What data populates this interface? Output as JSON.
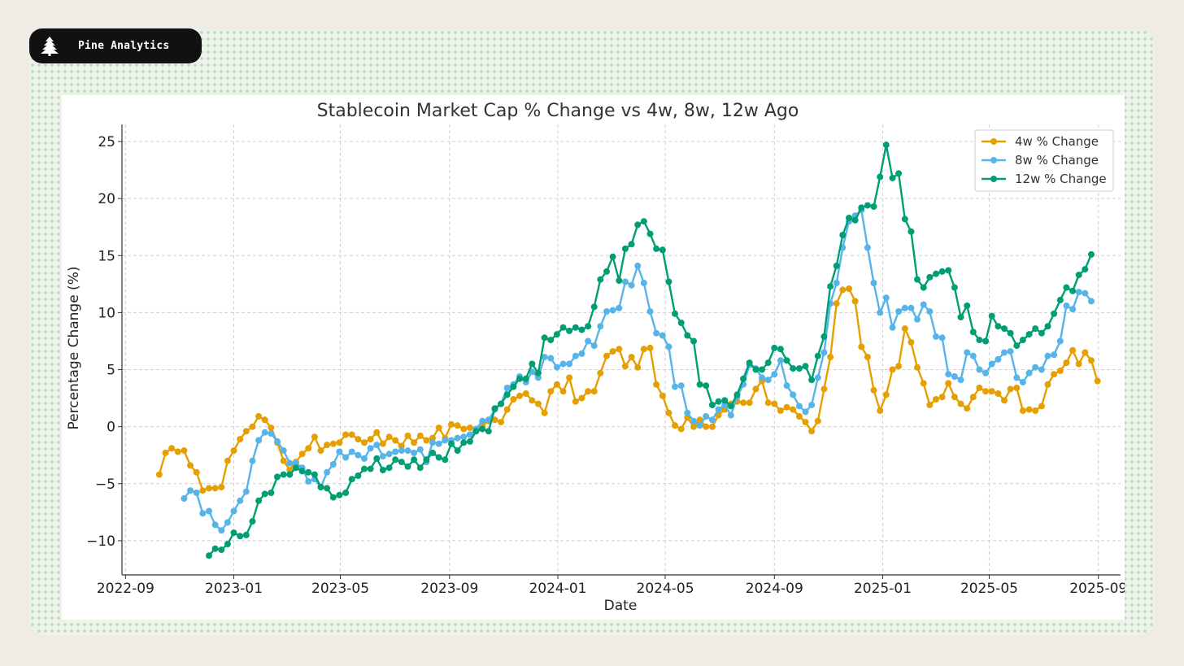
{
  "brand": {
    "name": "Pine Analytics",
    "icon": "pine-tree-icon"
  },
  "chart_data": {
    "type": "line",
    "title": "Stablecoin Market Cap % Change vs 4w, 8w, 12w Ago",
    "xlabel": "Date",
    "ylabel": "Percentage Change (%)",
    "ylim": [
      -13,
      26.5
    ],
    "xlim": [
      "2022-08-28",
      "2025-09-26"
    ],
    "x_ticks": [
      {
        "date": "2022-09-01",
        "label": "2022-09"
      },
      {
        "date": "2023-01-01",
        "label": "2023-01"
      },
      {
        "date": "2023-05-01",
        "label": "2023-05"
      },
      {
        "date": "2023-09-01",
        "label": "2023-09"
      },
      {
        "date": "2024-01-01",
        "label": "2024-01"
      },
      {
        "date": "2024-05-01",
        "label": "2024-05"
      },
      {
        "date": "2024-09-01",
        "label": "2024-09"
      },
      {
        "date": "2025-01-01",
        "label": "2025-01"
      },
      {
        "date": "2025-05-01",
        "label": "2025-05"
      },
      {
        "date": "2025-09-01",
        "label": "2025-09"
      }
    ],
    "y_ticks": [
      -10,
      -5,
      0,
      5,
      10,
      15,
      20,
      25
    ],
    "y_tick_labels": [
      "−10",
      "−5",
      "0",
      "5",
      "10",
      "15",
      "20",
      "25"
    ],
    "grid": true,
    "legend_position": "top-right",
    "series": [
      {
        "name": "4w % Change",
        "color": "#e69f00",
        "start_date": "2022-10-09",
        "interval_days": 7,
        "values": [
          -4.2,
          -2.3,
          -1.9,
          -2.2,
          -2.1,
          -3.4,
          -4.0,
          -5.6,
          -5.4,
          -5.4,
          -5.3,
          -3.0,
          -2.1,
          -1.1,
          -0.4,
          0.0,
          0.9,
          0.6,
          -0.1,
          -1.4,
          -3.0,
          -3.8,
          -3.1,
          -2.4,
          -1.9,
          -0.9,
          -2.1,
          -1.6,
          -1.5,
          -1.4,
          -0.7,
          -0.7,
          -1.1,
          -1.4,
          -1.1,
          -0.5,
          -1.5,
          -0.9,
          -1.2,
          -1.7,
          -0.8,
          -1.4,
          -0.8,
          -1.2,
          -1.0,
          -0.1,
          -1.0,
          0.2,
          0.1,
          -0.2,
          -0.1,
          -0.2,
          0.1,
          0.5,
          0.6,
          0.4,
          1.5,
          2.4,
          2.7,
          2.9,
          2.3,
          2.0,
          1.2,
          3.1,
          3.7,
          3.1,
          4.3,
          2.2,
          2.5,
          3.1,
          3.1,
          4.7,
          6.2,
          6.6,
          6.8,
          5.3,
          6.1,
          5.2,
          6.8,
          6.9,
          3.7,
          2.7,
          1.2,
          0.1,
          -0.2,
          0.8,
          0.0,
          0.6,
          0.0,
          0.0,
          1.0,
          1.5,
          2.0,
          2.2,
          2.1,
          2.1,
          3.3,
          4.0,
          2.1,
          2.0,
          1.4,
          1.7,
          1.5,
          0.9,
          0.4,
          -0.4,
          0.5,
          3.3,
          6.1,
          10.8,
          12.0,
          12.1,
          11.0,
          7.0,
          6.1,
          3.2,
          1.4,
          2.8,
          5.0,
          5.3,
          8.6,
          7.4,
          5.2,
          3.8,
          1.9,
          2.4,
          2.6,
          3.8,
          2.6,
          2.0,
          1.6,
          2.6,
          3.4,
          3.1,
          3.1,
          2.9,
          2.3,
          3.3,
          3.4,
          1.4,
          1.5,
          1.4,
          1.8,
          3.7,
          4.6,
          4.9,
          5.6,
          6.7,
          5.5,
          6.5,
          5.8,
          4.0
        ]
      },
      {
        "name": "8w % Change",
        "color": "#56b4e9",
        "start_date": "2022-11-06",
        "interval_days": 7,
        "values": [
          -6.3,
          -5.6,
          -5.8,
          -7.6,
          -7.4,
          -8.6,
          -9.1,
          -8.4,
          -7.4,
          -6.5,
          -5.7,
          -3.0,
          -1.2,
          -0.5,
          -0.6,
          -1.3,
          -2.1,
          -3.2,
          -3.2,
          -3.6,
          -4.8,
          -4.6,
          -5.3,
          -4.0,
          -3.3,
          -2.2,
          -2.7,
          -2.2,
          -2.5,
          -2.8,
          -1.9,
          -1.6,
          -2.6,
          -2.4,
          -2.2,
          -2.1,
          -2.1,
          -2.3,
          -2.0,
          -3.1,
          -1.4,
          -1.5,
          -1.2,
          -1.2,
          -1.0,
          -0.9,
          -0.7,
          -0.2,
          0.5,
          0.6,
          1.5,
          2.0,
          3.4,
          3.7,
          4.4,
          3.9,
          4.8,
          4.3,
          6.1,
          6.0,
          5.2,
          5.5,
          5.5,
          6.2,
          6.4,
          7.5,
          7.1,
          8.8,
          10.1,
          10.2,
          10.4,
          12.7,
          12.4,
          14.1,
          12.6,
          10.1,
          8.2,
          8.0,
          7.0,
          3.5,
          3.6,
          1.2,
          0.5,
          0.1,
          0.9,
          0.6,
          1.5,
          1.9,
          1.0,
          2.6,
          3.7,
          5.4,
          5.1,
          4.3,
          4.1,
          4.6,
          5.8,
          3.6,
          2.8,
          1.8,
          1.3,
          1.9,
          4.3,
          6.5,
          10.8,
          12.6,
          15.7,
          18.0,
          18.5,
          19.0,
          15.7,
          12.6,
          10.0,
          11.3,
          8.7,
          10.1,
          10.4,
          10.4,
          9.4,
          10.7,
          10.1,
          7.9,
          7.8,
          4.6,
          4.4,
          4.1,
          6.5,
          6.2,
          5.0,
          4.7,
          5.5,
          5.9,
          6.5,
          6.6,
          4.3,
          3.9,
          4.7,
          5.2,
          5.0,
          6.2,
          6.3,
          7.5,
          10.6,
          10.3,
          11.8,
          11.7,
          11.0
        ]
      },
      {
        "name": "12w % Change",
        "color": "#009e73",
        "start_date": "2022-12-04",
        "interval_days": 7,
        "values": [
          -11.3,
          -10.7,
          -10.8,
          -10.3,
          -9.3,
          -9.6,
          -9.5,
          -8.3,
          -6.5,
          -5.9,
          -5.8,
          -4.4,
          -4.2,
          -4.2,
          -3.6,
          -3.9,
          -4.0,
          -4.2,
          -5.3,
          -5.4,
          -6.2,
          -6.0,
          -5.8,
          -4.6,
          -4.3,
          -3.7,
          -3.7,
          -2.8,
          -3.8,
          -3.6,
          -2.9,
          -3.1,
          -3.5,
          -2.9,
          -3.6,
          -2.9,
          -2.3,
          -2.7,
          -2.9,
          -1.5,
          -2.1,
          -1.4,
          -1.3,
          -0.4,
          -0.2,
          -0.4,
          1.6,
          2.0,
          2.8,
          3.5,
          4.2,
          4.2,
          5.5,
          4.7,
          7.8,
          7.6,
          8.1,
          8.7,
          8.4,
          8.7,
          8.5,
          8.8,
          10.5,
          12.9,
          13.6,
          14.9,
          12.8,
          15.6,
          16.0,
          17.7,
          18.0,
          16.9,
          15.6,
          15.5,
          12.7,
          9.9,
          9.1,
          8.0,
          7.5,
          3.7,
          3.6,
          1.9,
          2.2,
          2.3,
          1.8,
          2.8,
          4.2,
          5.6,
          5.0,
          5.0,
          5.6,
          6.9,
          6.8,
          5.8,
          5.1,
          5.1,
          5.3,
          4.1,
          6.2,
          7.9,
          12.3,
          14.1,
          16.8,
          18.3,
          18.1,
          19.2,
          19.4,
          19.3,
          21.9,
          24.7,
          21.8,
          22.2,
          18.2,
          17.1,
          12.9,
          12.2,
          13.1,
          13.4,
          13.6,
          13.7,
          12.2,
          9.6,
          10.6,
          8.3,
          7.6,
          7.5,
          9.7,
          8.8,
          8.6,
          8.2,
          7.1,
          7.6,
          8.1,
          8.6,
          8.2,
          8.8,
          9.9,
          11.1,
          12.2,
          11.9,
          13.3,
          13.8,
          15.1
        ]
      }
    ]
  }
}
